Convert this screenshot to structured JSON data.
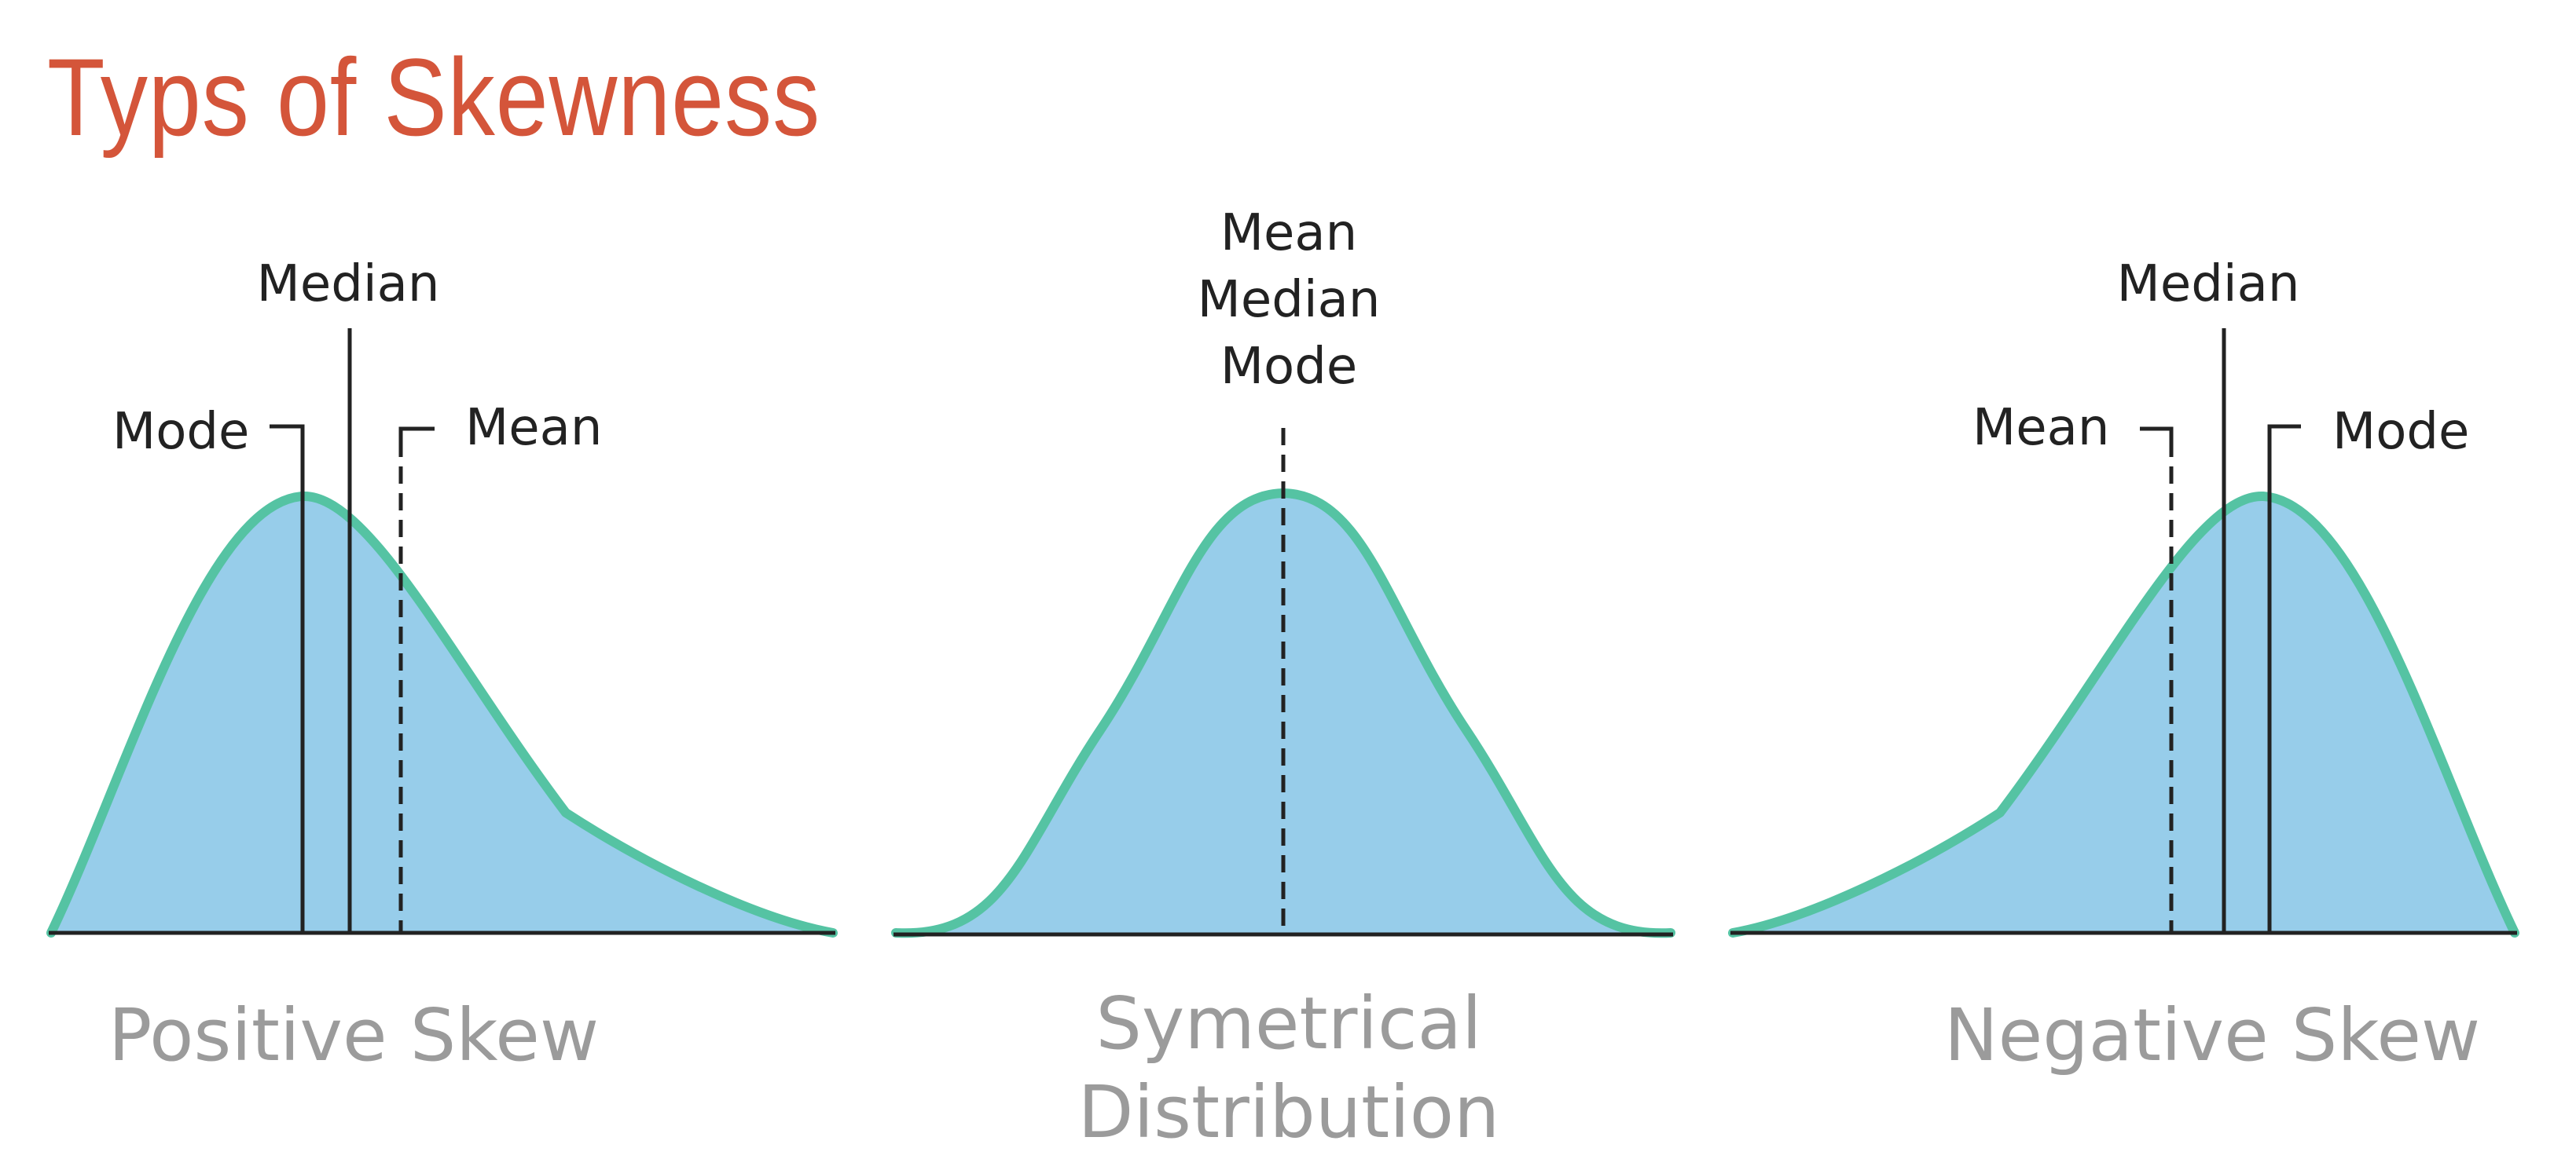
{
  "title": "Typs of Skewness",
  "colors": {
    "title": "#d4553a",
    "fill": "#97cdea",
    "curve": "#55c3a3",
    "line": "#222222",
    "label": "#9b9b9b"
  },
  "panels": [
    {
      "id": "positive",
      "name": "Positive Skew",
      "annotations": {
        "mode": "Mode",
        "median": "Median",
        "mean": "Mean"
      }
    },
    {
      "id": "symmetrical",
      "name_lines": [
        "Symetrical",
        "Distribution"
      ],
      "annotations": {
        "mean": "Mean",
        "median": "Median",
        "mode": "Mode"
      }
    },
    {
      "id": "negative",
      "name": "Negative Skew",
      "annotations": {
        "mean": "Mean",
        "median": "Median",
        "mode": "Mode"
      }
    }
  ]
}
